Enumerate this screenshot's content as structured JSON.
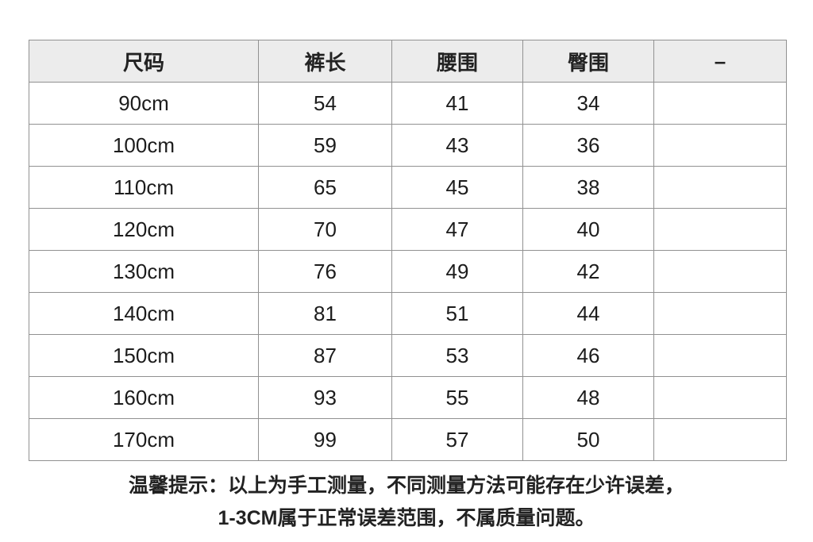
{
  "chart_data": {
    "type": "table",
    "columns": [
      "尺码",
      "裤长",
      "腰围",
      "臀围",
      "–"
    ],
    "rows": [
      [
        "90cm",
        "54",
        "41",
        "34",
        ""
      ],
      [
        "100cm",
        "59",
        "43",
        "36",
        ""
      ],
      [
        "110cm",
        "65",
        "45",
        "38",
        ""
      ],
      [
        "120cm",
        "70",
        "47",
        "40",
        ""
      ],
      [
        "130cm",
        "76",
        "49",
        "42",
        ""
      ],
      [
        "140cm",
        "81",
        "51",
        "44",
        ""
      ],
      [
        "150cm",
        "87",
        "53",
        "46",
        ""
      ],
      [
        "160cm",
        "93",
        "55",
        "48",
        ""
      ],
      [
        "170cm",
        "99",
        "57",
        "50",
        ""
      ]
    ]
  },
  "note": {
    "line1": "温馨提示：以上为手工测量，不同测量方法可能存在少许误差，",
    "line2": "1-3CM属于正常误差范围，不属质量问题。"
  },
  "colors": {
    "header_bg": "#ececec",
    "border": "#919191",
    "text": "#1c1c1c",
    "background": "#ffffff"
  }
}
